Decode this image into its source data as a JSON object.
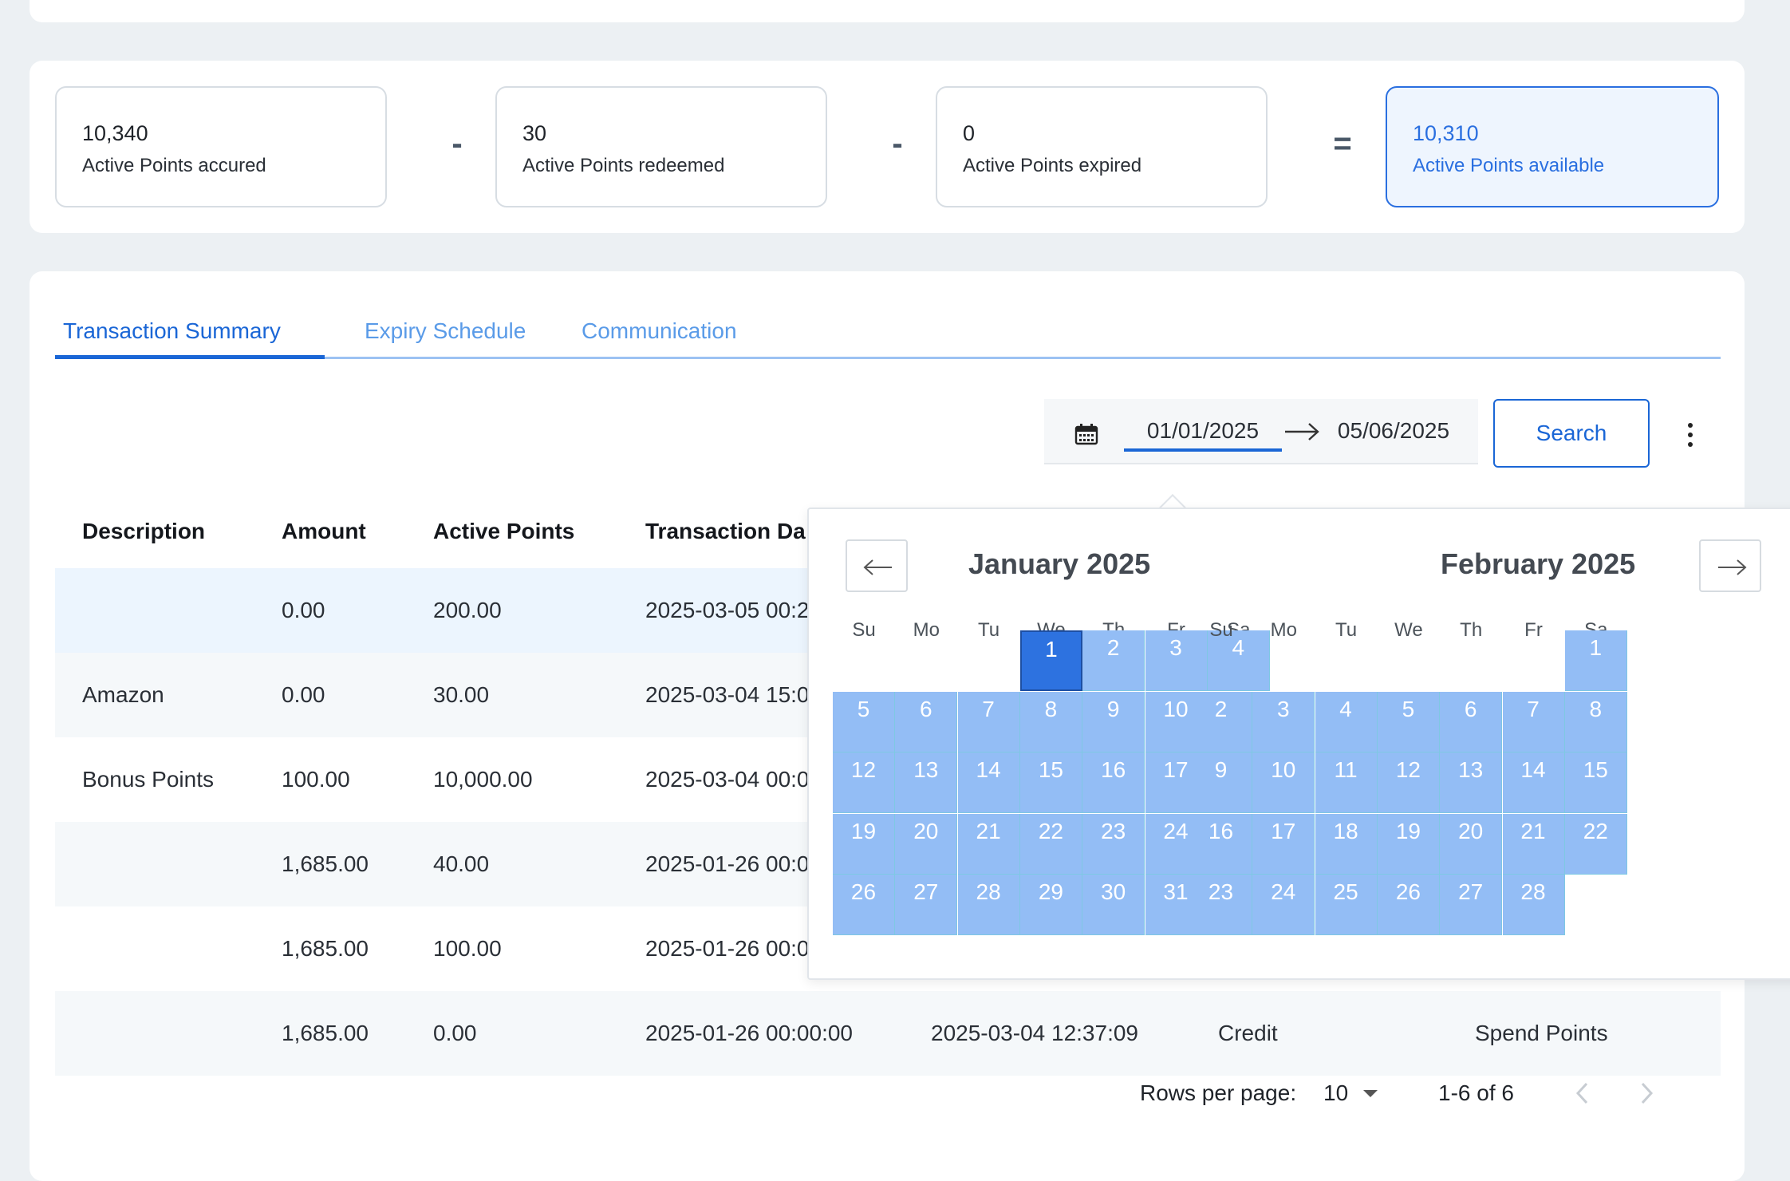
{
  "summary": {
    "accrued": {
      "value": "10,340",
      "label": "Active Points accured"
    },
    "redeemed": {
      "value": "30",
      "label": "Active Points redeemed"
    },
    "expired": {
      "value": "0",
      "label": "Active Points expired"
    },
    "available": {
      "value": "10,310",
      "label": "Active Points available"
    },
    "op_minus": "-",
    "op_equals": "="
  },
  "tabs": [
    {
      "label": "Transaction Summary",
      "active": true
    },
    {
      "label": "Expiry Schedule",
      "active": false
    },
    {
      "label": "Communication",
      "active": false
    }
  ],
  "filter": {
    "date_from": "01/01/2025",
    "date_to": "05/06/2025",
    "search_label": "Search"
  },
  "table": {
    "headers": [
      "Description",
      "Amount",
      "Active Points",
      "Transaction Da"
    ],
    "rows": [
      {
        "description": "",
        "amount": "0.00",
        "active_points": "200.00",
        "transaction_date": "2025-03-05 00:2"
      },
      {
        "description": "Amazon",
        "amount": "0.00",
        "active_points": "30.00",
        "transaction_date": "2025-03-04 15:0"
      },
      {
        "description": "Bonus Points",
        "amount": "100.00",
        "active_points": "10,000.00",
        "transaction_date": "2025-03-04 00:0"
      },
      {
        "description": "",
        "amount": "1,685.00",
        "active_points": "40.00",
        "transaction_date": "2025-01-26 00:0"
      },
      {
        "description": "",
        "amount": "1,685.00",
        "active_points": "100.00",
        "transaction_date": "2025-01-26 00:0"
      },
      {
        "description": "",
        "amount": "1,685.00",
        "active_points": "0.00",
        "transaction_date": "2025-01-26 00:00:00",
        "created": "2025-03-04 12:37:09",
        "type": "Credit",
        "reason": "Spend Points"
      }
    ]
  },
  "pagination": {
    "rows_per_page_label": "Rows per page:",
    "rows_per_page": "10",
    "range": "1-6 of 6"
  },
  "calendar": {
    "weekdays": [
      "Su",
      "Mo",
      "Tu",
      "We",
      "Th",
      "Fr",
      "Sa"
    ],
    "months": [
      {
        "title": "January 2025",
        "start_weekday": 3,
        "days": 31,
        "selected_day": 1
      },
      {
        "title": "February 2025",
        "start_weekday": 6,
        "days": 28,
        "selected_day": null
      }
    ]
  },
  "colors": {
    "primary": "#1a66d6",
    "highlight_bg": "#eef5fe",
    "calendar_range": "#93bdf5",
    "calendar_selected": "#2d72e0"
  }
}
